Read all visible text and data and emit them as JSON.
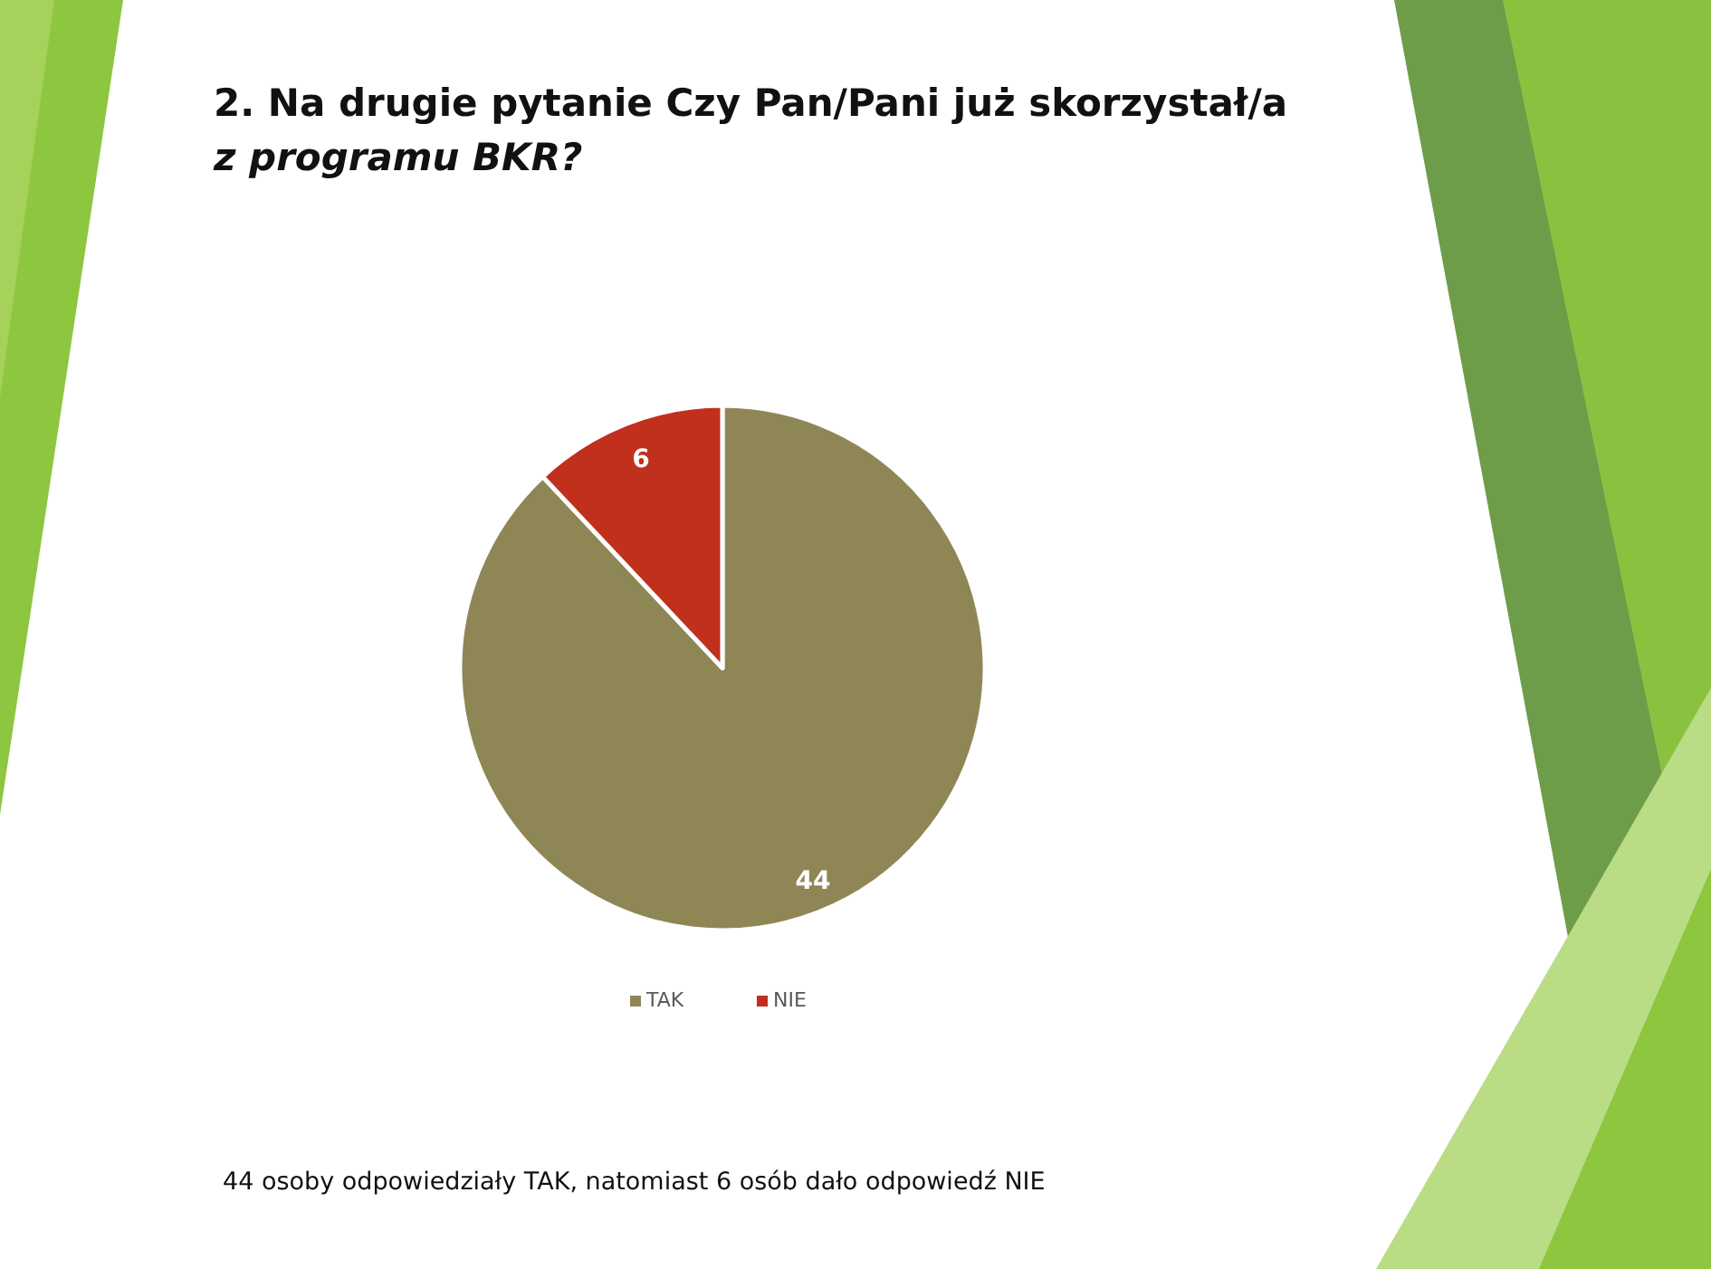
{
  "chart_data": {
    "type": "pie",
    "title": "2. Na drugie pytanie Czy Pan/Pani już skorzystał/a z programu BKR?",
    "categories": [
      "TAK",
      "NIE"
    ],
    "values": [
      44,
      6
    ],
    "colors": [
      "#8f8656",
      "#c0301c"
    ],
    "data_labels": true,
    "legend": "bottom",
    "annotations": [
      "44 osoby odpowiedziały TAK, natomiast 6 osób dało odpowiedź NIE"
    ]
  }
}
